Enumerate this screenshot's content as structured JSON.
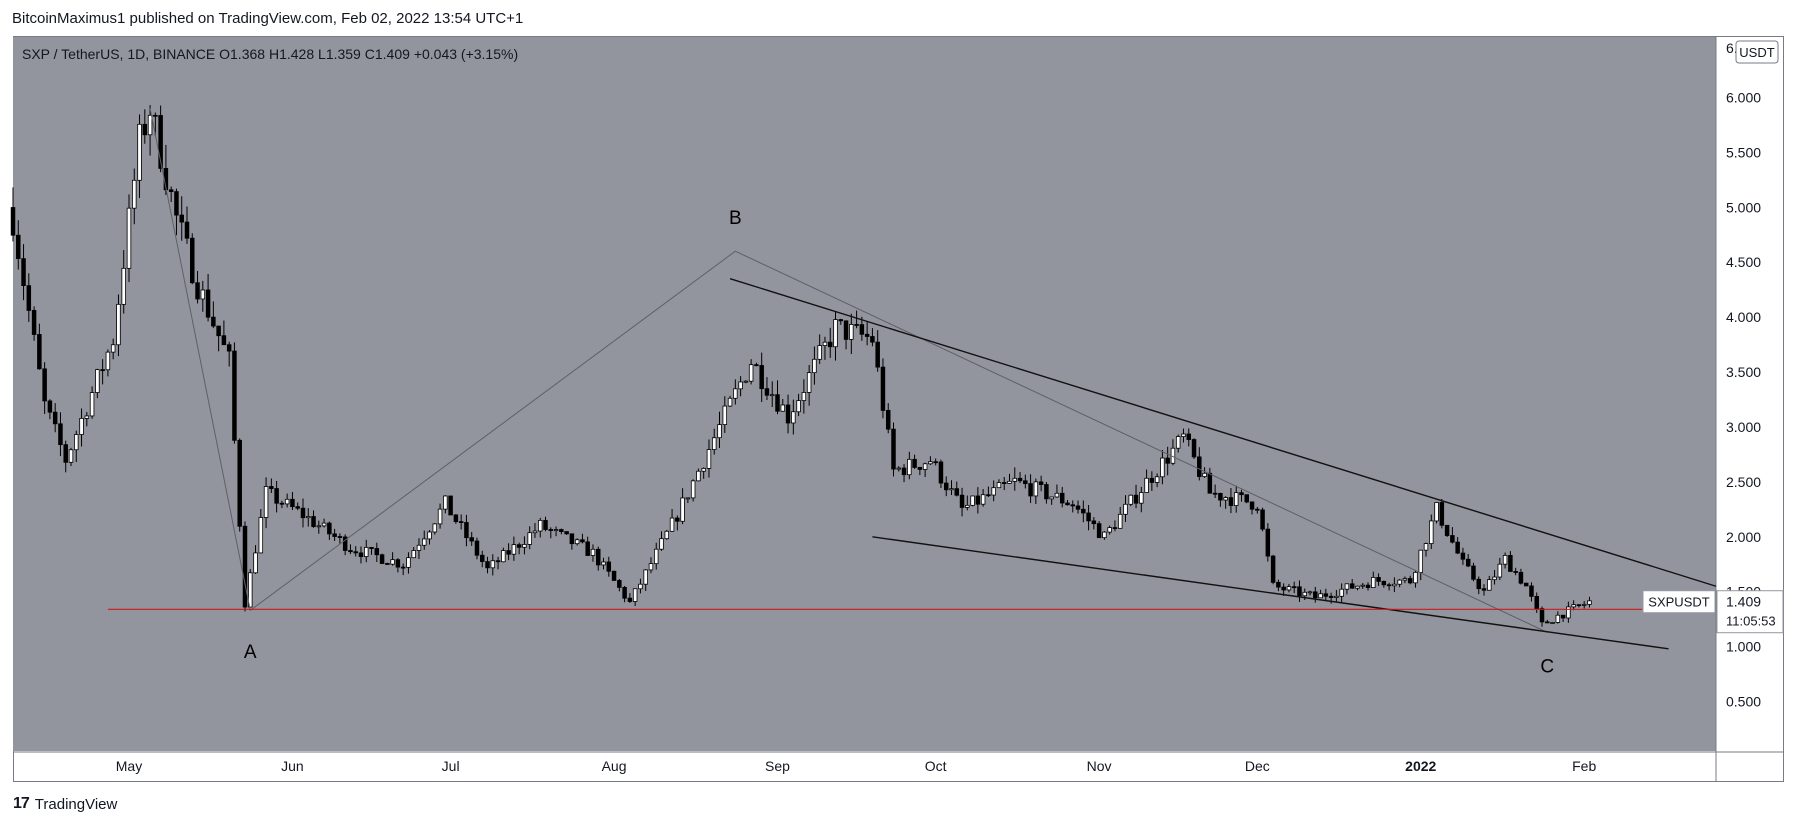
{
  "header": {
    "published_by": "BitcoinMaximus1 published on TradingView.com, Feb 02, 2022 13:54 UTC+1"
  },
  "footer": {
    "brand": "TradingView",
    "logo_glyph": "17"
  },
  "colors": {
    "background": "#93959e",
    "up_candle": "#ffffff",
    "down_candle": "#000000",
    "wick": "#000000",
    "support_line": "#d01818",
    "trendline": "#111111",
    "wave_line": "#5e6068",
    "axis_text": "#131722"
  },
  "chart_data": {
    "type": "candlestick",
    "symbol_line": {
      "symbol": "SXP / TetherUS, 1D, BINANCE",
      "o_label": "O",
      "o_value": "1.368",
      "h_label": "H",
      "h_value": "1.428",
      "l_label": "L",
      "l_value": "1.359",
      "c_label": "C",
      "c_value": "1.409",
      "change": "+0.043 (+3.15%)"
    },
    "currency_badge": "USDT",
    "ylim": [
      0.05,
      6.55
    ],
    "yticks": [
      "0.500",
      "1.000",
      "1.500",
      "2.000",
      "2.500",
      "3.000",
      "3.500",
      "4.000",
      "4.500",
      "5.000",
      "5.500",
      "6.000"
    ],
    "top_tick_partial": "6.",
    "xticks": [
      {
        "label": "May",
        "date": "2021-05-01",
        "bold": false
      },
      {
        "label": "Jun",
        "date": "2021-06-01",
        "bold": false
      },
      {
        "label": "Jul",
        "date": "2021-07-01",
        "bold": false
      },
      {
        "label": "Aug",
        "date": "2021-08-01",
        "bold": false
      },
      {
        "label": "Sep",
        "date": "2021-09-01",
        "bold": false
      },
      {
        "label": "Oct",
        "date": "2021-10-01",
        "bold": false
      },
      {
        "label": "Nov",
        "date": "2021-11-01",
        "bold": false
      },
      {
        "label": "Dec",
        "date": "2021-12-01",
        "bold": false
      },
      {
        "label": "2022",
        "date": "2022-01-01",
        "bold": true
      },
      {
        "label": "Feb",
        "date": "2022-02-01",
        "bold": false
      }
    ],
    "x_range": [
      "2021-04-09",
      "2022-02-26"
    ],
    "price_label": {
      "symbol": "SXPUSDT",
      "price": "1.409",
      "countdown": "11:05:53"
    },
    "key_points": [
      {
        "date": "2021-04-09",
        "price": 4.9
      },
      {
        "date": "2021-04-15",
        "price": 3.2
      },
      {
        "date": "2021-04-19",
        "price": 2.7
      },
      {
        "date": "2021-04-28",
        "price": 3.8
      },
      {
        "date": "2021-05-03",
        "price": 5.6
      },
      {
        "date": "2021-05-05",
        "price": 5.9
      },
      {
        "date": "2021-05-10",
        "price": 4.9
      },
      {
        "date": "2021-05-14",
        "price": 4.3
      },
      {
        "date": "2021-05-20",
        "price": 3.6
      },
      {
        "date": "2021-05-23",
        "price": 1.4
      },
      {
        "date": "2021-05-27",
        "price": 2.4
      },
      {
        "date": "2021-06-03",
        "price": 2.2
      },
      {
        "date": "2021-06-12",
        "price": 1.9
      },
      {
        "date": "2021-06-22",
        "price": 1.75
      },
      {
        "date": "2021-06-30",
        "price": 2.3
      },
      {
        "date": "2021-07-08",
        "price": 1.7
      },
      {
        "date": "2021-07-18",
        "price": 2.1
      },
      {
        "date": "2021-07-28",
        "price": 1.85
      },
      {
        "date": "2021-08-04",
        "price": 1.4
      },
      {
        "date": "2021-08-13",
        "price": 2.2
      },
      {
        "date": "2021-08-21",
        "price": 3.0
      },
      {
        "date": "2021-08-27",
        "price": 3.6
      },
      {
        "date": "2021-09-03",
        "price": 3.1
      },
      {
        "date": "2021-09-12",
        "price": 3.9
      },
      {
        "date": "2021-09-19",
        "price": 3.8
      },
      {
        "date": "2021-09-23",
        "price": 2.6
      },
      {
        "date": "2021-09-30",
        "price": 2.7
      },
      {
        "date": "2021-10-06",
        "price": 2.25
      },
      {
        "date": "2021-10-16",
        "price": 2.5
      },
      {
        "date": "2021-10-27",
        "price": 2.3
      },
      {
        "date": "2021-11-02",
        "price": 2.0
      },
      {
        "date": "2021-11-10",
        "price": 2.5
      },
      {
        "date": "2021-11-17",
        "price": 2.9
      },
      {
        "date": "2021-11-22",
        "price": 2.4
      },
      {
        "date": "2021-12-01",
        "price": 2.3
      },
      {
        "date": "2021-12-04",
        "price": 1.55
      },
      {
        "date": "2021-12-12",
        "price": 1.45
      },
      {
        "date": "2021-12-23",
        "price": 1.6
      },
      {
        "date": "2021-12-30",
        "price": 1.6
      },
      {
        "date": "2022-01-04",
        "price": 2.25
      },
      {
        "date": "2022-01-09",
        "price": 1.75
      },
      {
        "date": "2022-01-13",
        "price": 1.5
      },
      {
        "date": "2022-01-17",
        "price": 1.8
      },
      {
        "date": "2022-01-21",
        "price": 1.55
      },
      {
        "date": "2022-01-24",
        "price": 1.2
      },
      {
        "date": "2022-01-27",
        "price": 1.28
      },
      {
        "date": "2022-02-02",
        "price": 1.409
      }
    ],
    "annotations": [
      {
        "label": "A",
        "date": "2021-05-24",
        "price": 0.95
      },
      {
        "label": "B",
        "date": "2021-08-24",
        "price": 4.9
      },
      {
        "label": "C",
        "date": "2022-01-25",
        "price": 0.82
      }
    ],
    "wave_path": [
      {
        "date": "2021-05-05",
        "price": 5.9
      },
      {
        "date": "2021-05-24",
        "price": 1.33
      },
      {
        "date": "2021-08-24",
        "price": 4.6
      },
      {
        "date": "2022-01-25",
        "price": 1.13
      }
    ],
    "horizontal_line": {
      "price": 1.34,
      "from": "2021-04-27",
      "to": "2022-02-12"
    },
    "upper_trendline": [
      {
        "date": "2021-08-23",
        "price": 4.35
      },
      {
        "date": "2022-02-26",
        "price": 1.55
      }
    ],
    "lower_trendline": [
      {
        "date": "2021-09-19",
        "price": 2.0
      },
      {
        "date": "2022-02-17",
        "price": 0.98
      }
    ]
  }
}
